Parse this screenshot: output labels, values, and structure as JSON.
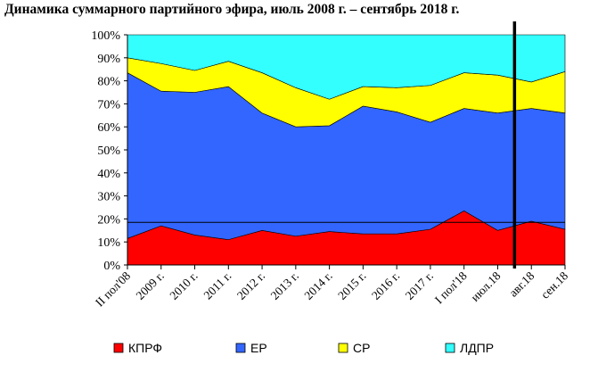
{
  "chart_data": {
    "type": "area",
    "stacked": true,
    "percent": true,
    "title": "Динамика суммарного партийного эфира, июль 2008 г. – сентябрь 2018 г.",
    "xlabel": "",
    "ylabel": "",
    "ylim": [
      0,
      100
    ],
    "y_ticks": [
      "0%",
      "10%",
      "20%",
      "30%",
      "40%",
      "50%",
      "60%",
      "70%",
      "80%",
      "90%",
      "100%"
    ],
    "categories": [
      "II пол'08",
      "2009 г.",
      "2010 г.",
      "2011 г.",
      "2012 г.",
      "2013 г.",
      "2014 г.",
      "2015 г.",
      "2016 г.",
      "2017 г.",
      "I пол'18",
      "июл.18",
      "авг.18",
      "сен.18"
    ],
    "series": [
      {
        "name": "КПРФ",
        "color": "#ff0000",
        "values": [
          11.5,
          17,
          13,
          11,
          15,
          12.5,
          14.5,
          13.5,
          13.5,
          15.5,
          23.5,
          15,
          19,
          15.5
        ]
      },
      {
        "name": "ЕР",
        "color": "#3366ff",
        "values": [
          72,
          58.5,
          62,
          66.5,
          51,
          47.5,
          46,
          55.5,
          53,
          46.5,
          44.5,
          51,
          49,
          50.5
        ]
      },
      {
        "name": "СР",
        "color": "#ffff00",
        "values": [
          6.5,
          12,
          9.5,
          11,
          17.5,
          17,
          11.5,
          8.5,
          10.5,
          16,
          15.5,
          16.5,
          11.5,
          18
        ]
      },
      {
        "name": "ЛДПР",
        "color": "#33ffff",
        "values": [
          10,
          12.5,
          15.5,
          11.5,
          16.5,
          23,
          28,
          22.5,
          23,
          22,
          16.5,
          17.5,
          20.5,
          16
        ]
      }
    ],
    "reference_line": {
      "value": 18.5
    },
    "vertical_marker": {
      "after_category": "июл.18"
    },
    "grid": false,
    "legend_position": "bottom"
  }
}
